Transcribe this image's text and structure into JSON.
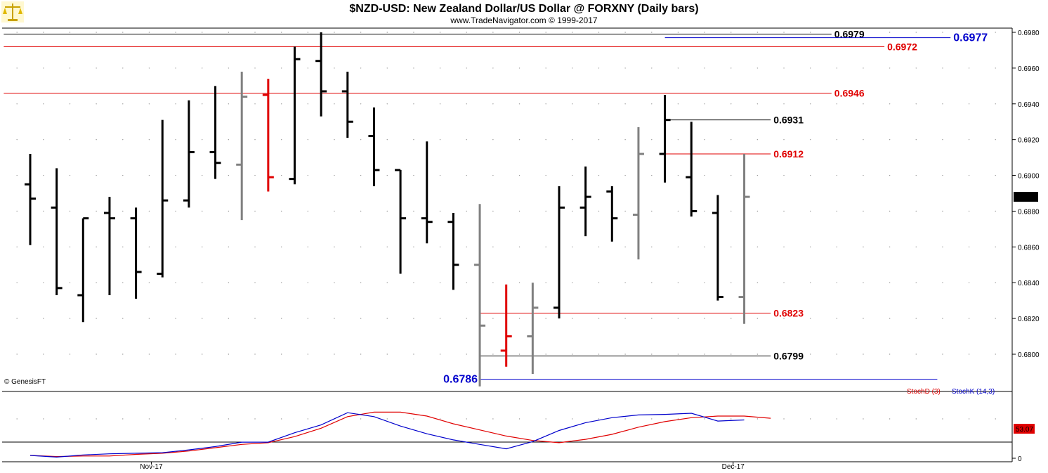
{
  "title": "$NZD-USD:  New Zealand Dollar/US Dollar @ FORXNY  (Daily bars)",
  "subtitle": "www.TradeNavigator.com © 1999-2017",
  "watermark": "© GenesisFT",
  "logo_icon": "scales-icon",
  "colors": {
    "up_bar": "#000000",
    "gray_bar": "#808080",
    "red_bar": "#e00000",
    "level_black": "#000000",
    "level_red": "#e00000",
    "level_blue": "#0000cc",
    "stoch_d": "#e00000",
    "stoch_k": "#0000cc"
  },
  "chart_data": [
    {
      "type": "ohlc",
      "title": "$NZD-USD:  New Zealand Dollar/US Dollar @ FORXNY  (Daily bars)",
      "y_axis_side": "right",
      "ylim": [
        0.6778,
        0.6984
      ],
      "y_ticks": [
        "0.6980",
        "0.6960",
        "0.6940",
        "0.6920",
        "0.6900",
        "0.6880",
        "0.6860",
        "0.6840",
        "0.6820",
        "0.6800"
      ],
      "x_tick_labels": [
        {
          "label": "Nov-17",
          "bar_index": 5
        },
        {
          "label": "Dec-17",
          "bar_index": 27
        }
      ],
      "last_price": "0.6888",
      "bars": [
        {
          "o": 0.6895,
          "h": 0.6912,
          "l": 0.6861,
          "c": 0.6887,
          "color": "black"
        },
        {
          "o": 0.6882,
          "h": 0.6904,
          "l": 0.6833,
          "c": 0.6837,
          "color": "black"
        },
        {
          "o": 0.6833,
          "h": 0.6876,
          "l": 0.6818,
          "c": 0.6876,
          "color": "black"
        },
        {
          "o": 0.6879,
          "h": 0.6888,
          "l": 0.6833,
          "c": 0.6876,
          "color": "black"
        },
        {
          "o": 0.6876,
          "h": 0.6882,
          "l": 0.6831,
          "c": 0.6846,
          "color": "black"
        },
        {
          "o": 0.6845,
          "h": 0.6931,
          "l": 0.6843,
          "c": 0.6886,
          "color": "black"
        },
        {
          "o": 0.6886,
          "h": 0.6942,
          "l": 0.6882,
          "c": 0.6913,
          "color": "black"
        },
        {
          "o": 0.6913,
          "h": 0.695,
          "l": 0.6898,
          "c": 0.6907,
          "color": "black"
        },
        {
          "o": 0.6906,
          "h": 0.6958,
          "l": 0.6875,
          "c": 0.6944,
          "color": "gray"
        },
        {
          "o": 0.6945,
          "h": 0.6954,
          "l": 0.6891,
          "c": 0.6899,
          "color": "red"
        },
        {
          "o": 0.6898,
          "h": 0.6972,
          "l": 0.6895,
          "c": 0.6965,
          "color": "black"
        },
        {
          "o": 0.6964,
          "h": 0.698,
          "l": 0.6933,
          "c": 0.6947,
          "color": "black"
        },
        {
          "o": 0.6947,
          "h": 0.6958,
          "l": 0.6921,
          "c": 0.693,
          "color": "black"
        },
        {
          "o": 0.6922,
          "h": 0.6938,
          "l": 0.6894,
          "c": 0.6903,
          "color": "black"
        },
        {
          "o": 0.6903,
          "h": 0.6903,
          "l": 0.6845,
          "c": 0.6876,
          "color": "black"
        },
        {
          "o": 0.6876,
          "h": 0.6919,
          "l": 0.6862,
          "c": 0.6874,
          "color": "black"
        },
        {
          "o": 0.6874,
          "h": 0.6879,
          "l": 0.6836,
          "c": 0.685,
          "color": "black"
        },
        {
          "o": 0.685,
          "h": 0.6884,
          "l": 0.6782,
          "c": 0.6816,
          "color": "gray"
        },
        {
          "o": 0.6802,
          "h": 0.6839,
          "l": 0.6793,
          "c": 0.681,
          "color": "red"
        },
        {
          "o": 0.681,
          "h": 0.684,
          "l": 0.6789,
          "c": 0.6826,
          "color": "gray"
        },
        {
          "o": 0.6826,
          "h": 0.6894,
          "l": 0.682,
          "c": 0.6882,
          "color": "black"
        },
        {
          "o": 0.6882,
          "h": 0.6905,
          "l": 0.6866,
          "c": 0.6888,
          "color": "black"
        },
        {
          "o": 0.6891,
          "h": 0.6894,
          "l": 0.6863,
          "c": 0.6876,
          "color": "black"
        },
        {
          "o": 0.6878,
          "h": 0.6927,
          "l": 0.6853,
          "c": 0.6912,
          "color": "gray"
        },
        {
          "o": 0.6912,
          "h": 0.6945,
          "l": 0.6896,
          "c": 0.6931,
          "color": "black"
        },
        {
          "o": 0.6899,
          "h": 0.693,
          "l": 0.6877,
          "c": 0.688,
          "color": "black"
        },
        {
          "o": 0.6879,
          "h": 0.6889,
          "l": 0.683,
          "c": 0.6832,
          "color": "black"
        },
        {
          "o": 0.6832,
          "h": 0.6912,
          "l": 0.6817,
          "c": 0.6888,
          "color": "gray"
        }
      ],
      "levels": [
        {
          "value": 0.6979,
          "label": "0.6979",
          "color": "black",
          "from_bar": -1,
          "to_bar": 30.3
        },
        {
          "value": 0.6977,
          "label": "0.6977",
          "color": "blue",
          "from_bar": 24.0,
          "to_bar": 34.8,
          "big": true
        },
        {
          "value": 0.6972,
          "label": "0.6972",
          "color": "red",
          "from_bar": -1,
          "to_bar": 32.3
        },
        {
          "value": 0.6946,
          "label": "0.6946",
          "color": "red",
          "from_bar": -1,
          "to_bar": 30.3
        },
        {
          "value": 0.6931,
          "label": "0.6931",
          "color": "black",
          "from_bar": 24.0,
          "to_bar": 28.0
        },
        {
          "value": 0.6912,
          "label": "0.6912",
          "color": "red",
          "from_bar": 24.0,
          "to_bar": 28.0
        },
        {
          "value": 0.6823,
          "label": "0.6823",
          "color": "red",
          "from_bar": 17.0,
          "to_bar": 28.0
        },
        {
          "value": 0.6799,
          "label": "0.6799",
          "color": "black",
          "from_bar": 17.0,
          "to_bar": 28.0
        },
        {
          "value": 0.6786,
          "label": "0.6786",
          "color": "blue",
          "from_bar": 17.0,
          "to_bar": 34.3,
          "big": true,
          "label_left": true
        }
      ]
    },
    {
      "type": "line",
      "title": "Stochastic",
      "ylim": [
        0,
        100
      ],
      "y_ticks": [
        "0"
      ],
      "last_value": "53.07",
      "series": [
        {
          "name": "StochD (3)",
          "color": "red",
          "values": [
            5,
            3,
            4,
            4,
            7,
            9,
            13,
            19,
            25,
            28,
            39,
            54,
            75,
            83,
            83,
            76,
            62,
            51,
            40,
            32,
            28,
            34,
            43,
            56,
            66,
            73,
            76,
            76,
            72
          ]
        },
        {
          "name": "StochK (14,3)",
          "color": "blue",
          "values": [
            5,
            2,
            6,
            8,
            9,
            10,
            15,
            21,
            29,
            29,
            46,
            60,
            82,
            75,
            58,
            44,
            33,
            25,
            17,
            30,
            50,
            64,
            73,
            78,
            79,
            81,
            67,
            69,
            null
          ]
        }
      ]
    }
  ]
}
